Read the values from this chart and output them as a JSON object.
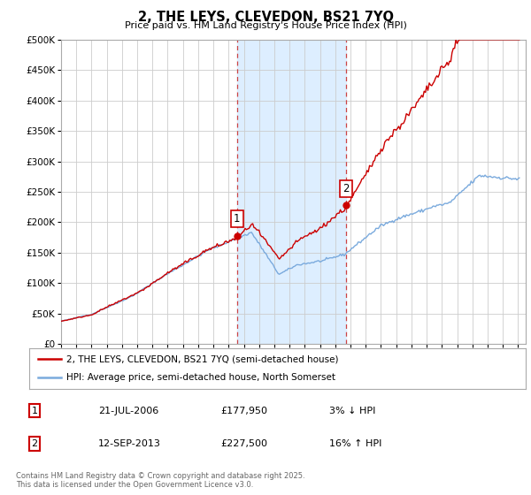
{
  "title": "2, THE LEYS, CLEVEDON, BS21 7YQ",
  "subtitle": "Price paid vs. HM Land Registry's House Price Index (HPI)",
  "ylabel_ticks": [
    "£0",
    "£50K",
    "£100K",
    "£150K",
    "£200K",
    "£250K",
    "£300K",
    "£350K",
    "£400K",
    "£450K",
    "£500K"
  ],
  "ytick_values": [
    0,
    50000,
    100000,
    150000,
    200000,
    250000,
    300000,
    350000,
    400000,
    450000,
    500000
  ],
  "ylim": [
    0,
    500000
  ],
  "xlim_start": 1995.0,
  "xlim_end": 2025.5,
  "sale1_date": 2006.55,
  "sale1_price": 177950,
  "sale2_date": 2013.71,
  "sale2_price": 227500,
  "vline1_x": 2006.55,
  "vline2_x": 2013.71,
  "shade_x1": 2006.55,
  "shade_x2": 2013.71,
  "line_color_red": "#cc0000",
  "line_color_blue": "#7aaadd",
  "vline_color": "#cc4444",
  "shade_color": "#ddeeff",
  "grid_color": "#cccccc",
  "background_color": "#ffffff",
  "legend_label_red": "2, THE LEYS, CLEVEDON, BS21 7YQ (semi-detached house)",
  "legend_label_blue": "HPI: Average price, semi-detached house, North Somerset",
  "annotation1_text": "1",
  "annotation2_text": "2",
  "footer_line1": "Contains HM Land Registry data © Crown copyright and database right 2025.",
  "footer_line2": "This data is licensed under the Open Government Licence v3.0.",
  "table_row1": [
    "1",
    "21-JUL-2006",
    "£177,950",
    "3% ↓ HPI"
  ],
  "table_row2": [
    "2",
    "12-SEP-2013",
    "£227,500",
    "16% ↑ HPI"
  ]
}
